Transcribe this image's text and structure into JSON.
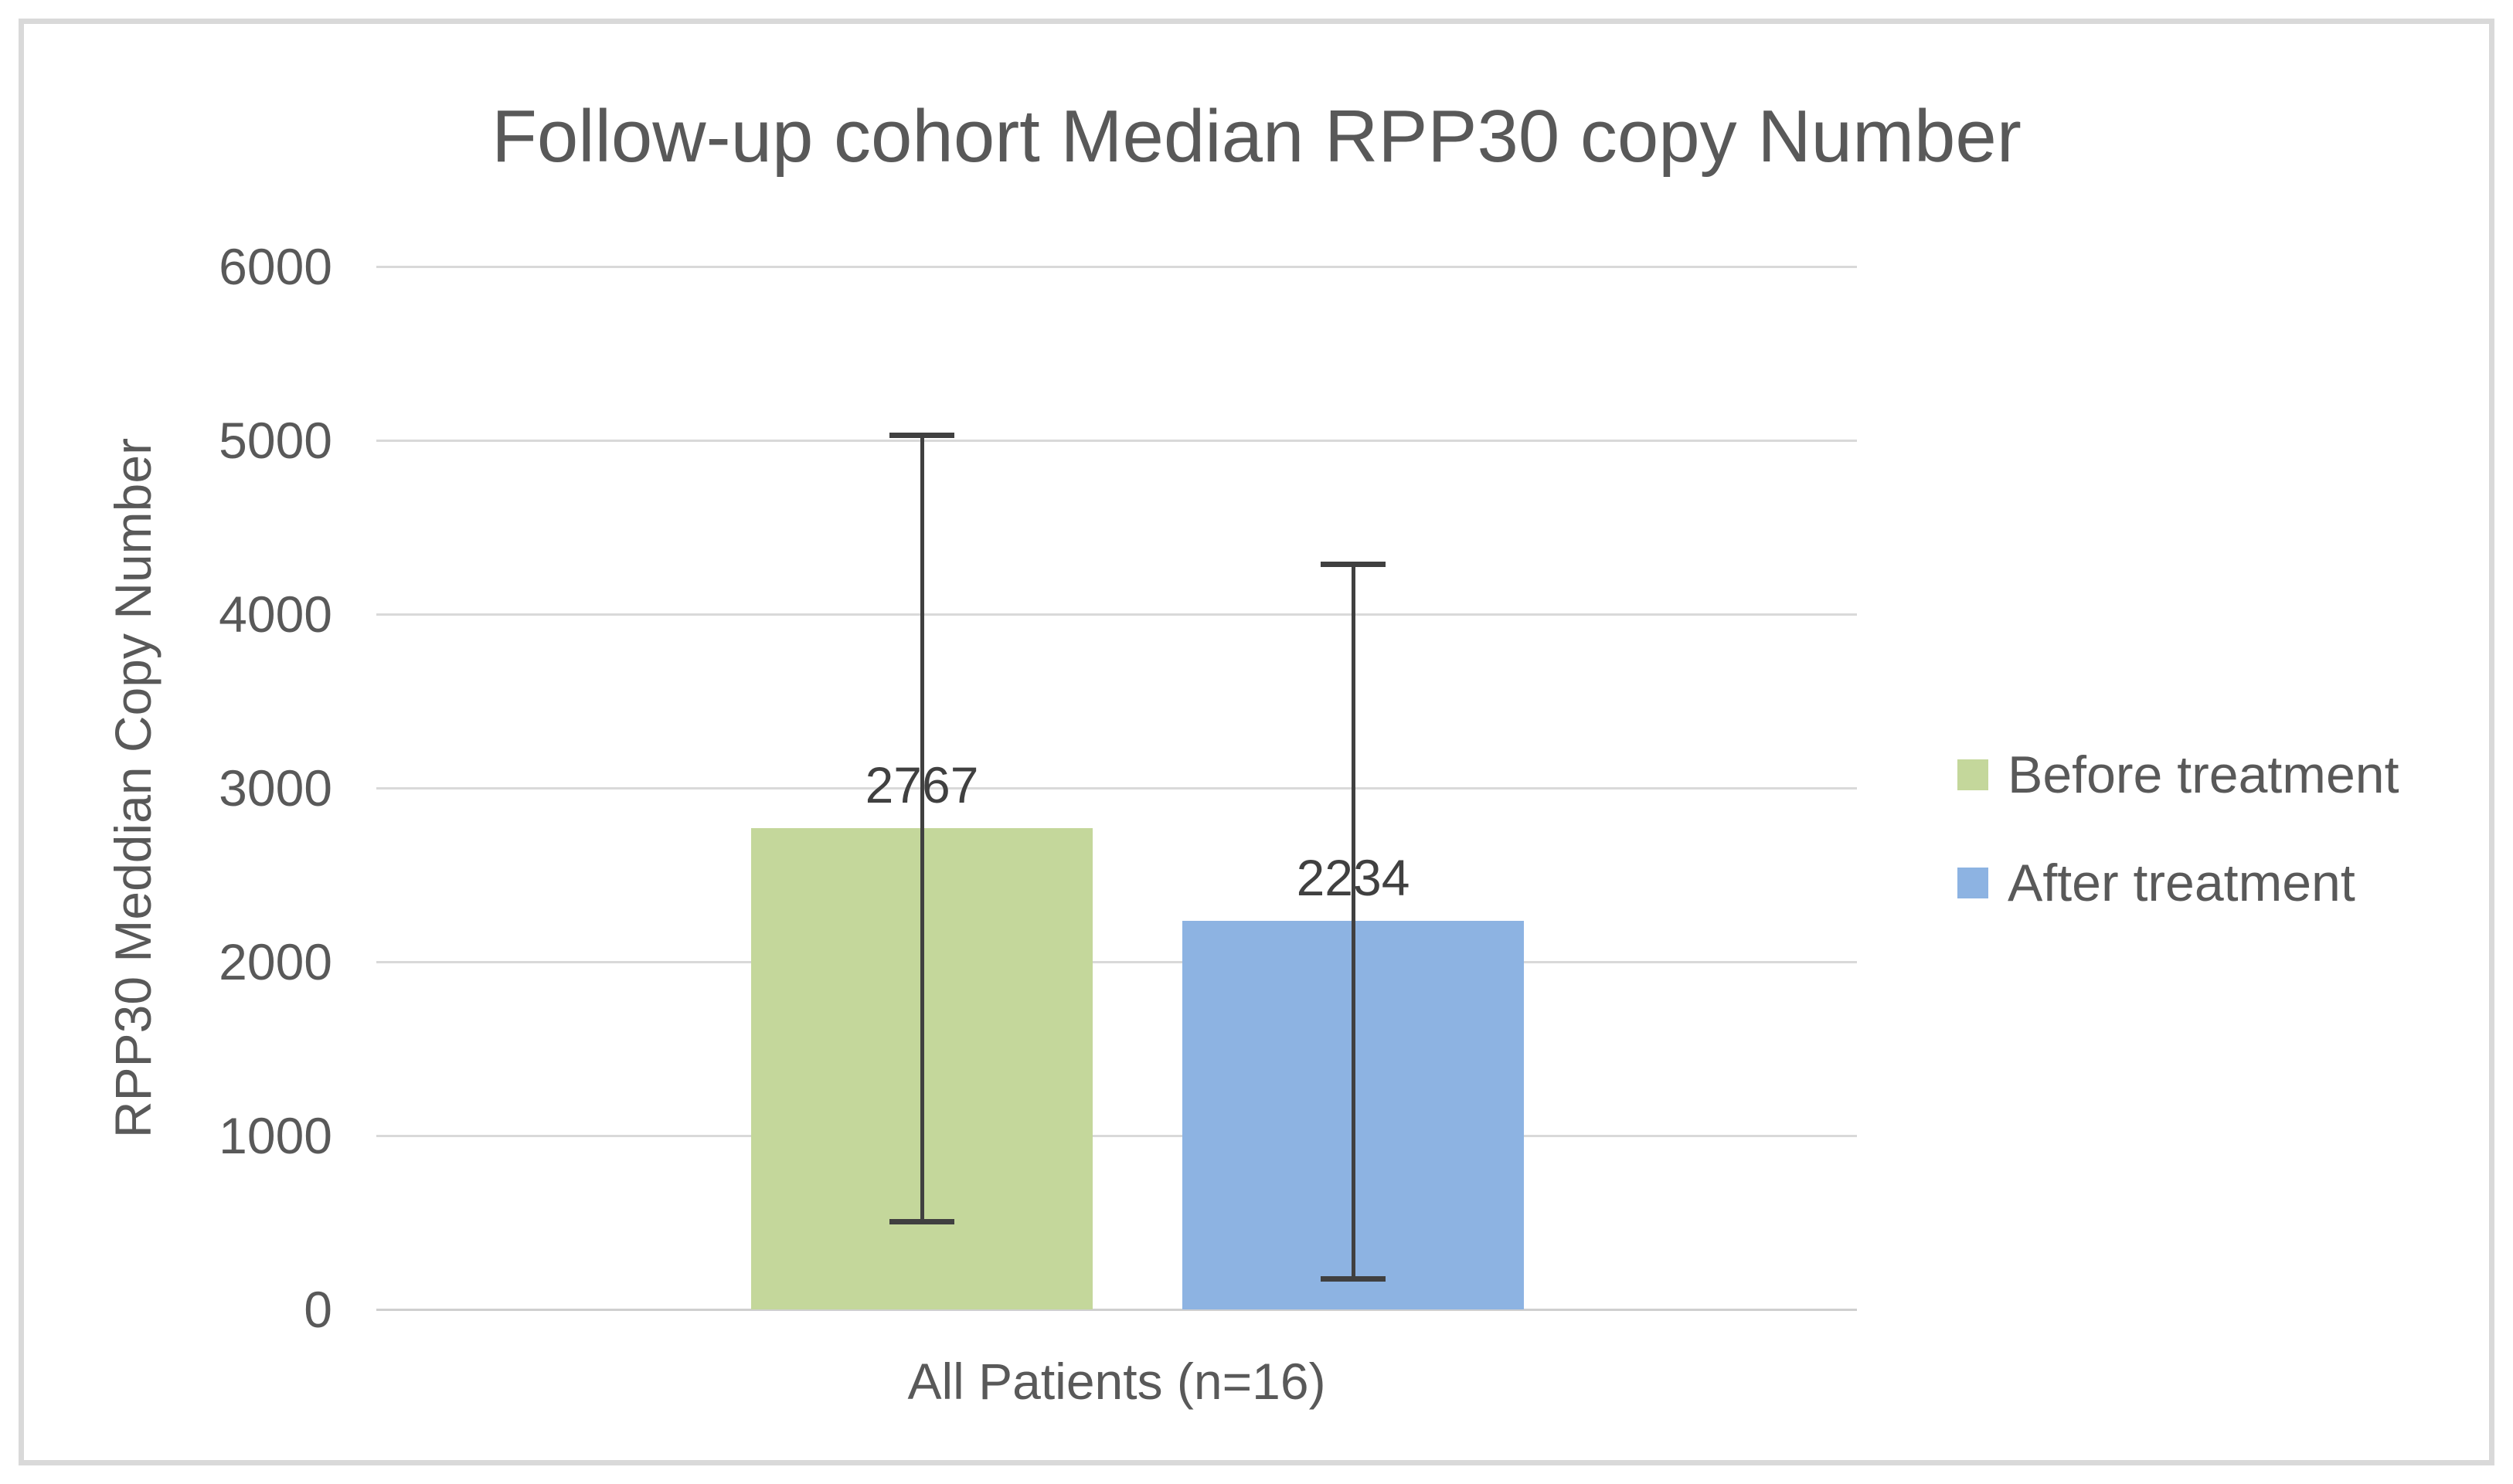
{
  "chart_data": {
    "type": "bar",
    "title": "Follow-up cohort Median RPP30 copy Number",
    "ylabel": "RPP30 Meddian Copy Number",
    "xlabel": "",
    "categories": [
      "All Patients (n=16)"
    ],
    "series": [
      {
        "name": "Before treatment",
        "color": "#c4d79b",
        "values": [
          2767
        ],
        "error_whisker_high": [
          5030
        ],
        "error_whisker_low": [
          505
        ]
      },
      {
        "name": "After treatment",
        "color": "#8db3e2",
        "values": [
          2234
        ],
        "error_whisker_high": [
          4290
        ],
        "error_whisker_low": [
          177
        ]
      }
    ],
    "data_labels": [
      "2767",
      "2234"
    ],
    "ylim": [
      0,
      6000
    ],
    "yticks": [
      "0",
      "1000",
      "2000",
      "3000",
      "4000",
      "5000",
      "6000"
    ],
    "grid": true,
    "legend_position": "right"
  },
  "colors": {
    "text_gray": "#595959",
    "label_dark": "#404040",
    "gridline": "#d9d9d9",
    "frame_border": "#d9d9d9",
    "before_bar": "#c4d79b",
    "after_bar": "#8db3e2"
  }
}
